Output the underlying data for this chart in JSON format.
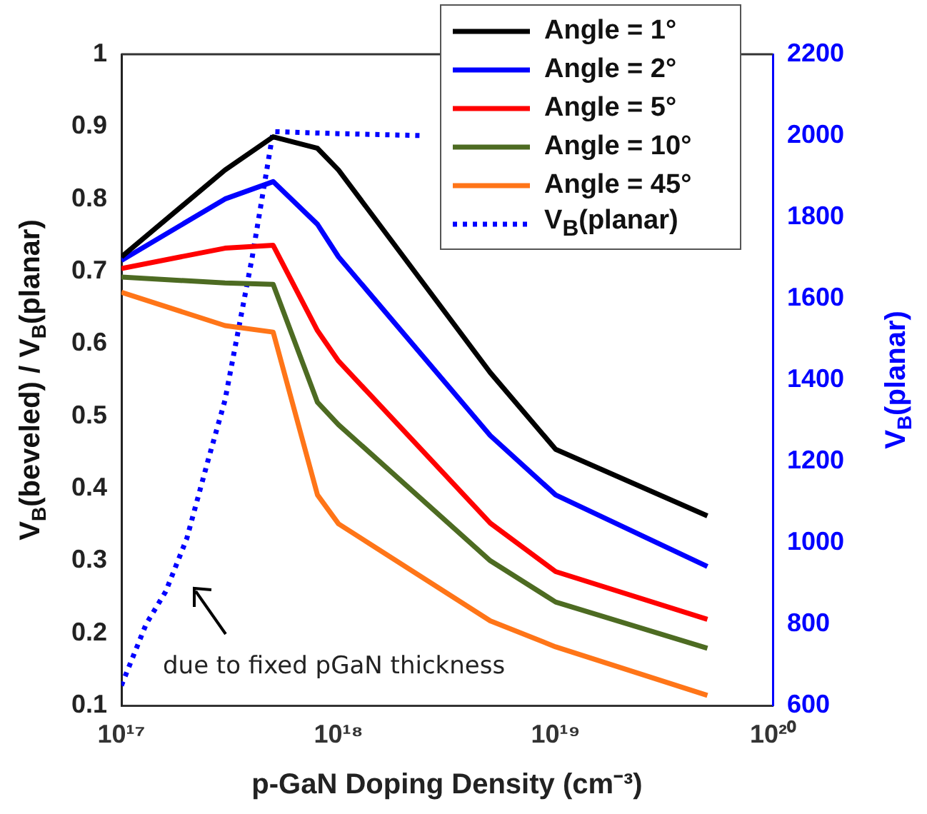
{
  "chart_data": {
    "type": "line",
    "xlabel": "p-GaN Doping Density (cm⁻³)",
    "ylabel": "V$_{B}$(beveled) / V$_{B}$(planar)",
    "y2label": "V$_{B}$(planar)",
    "log": "x",
    "xlim": [
      1e+17,
      1e+20
    ],
    "xticks": [
      {
        "value": 1e+17,
        "label": "10¹⁷"
      },
      {
        "value": 1e+18,
        "label": "10¹⁸"
      },
      {
        "value": 1e+19,
        "label": "10¹⁹"
      },
      {
        "value": 1e+20,
        "label": "10²⁰"
      }
    ],
    "ylim": [
      0.1,
      1
    ],
    "yticks": [
      0.1,
      0.2,
      0.3,
      0.4,
      0.5,
      0.6,
      0.7,
      0.8,
      0.9,
      1
    ],
    "y2lim": [
      600,
      2200
    ],
    "y2ticks": [
      600,
      800,
      1000,
      1200,
      1400,
      1600,
      1800,
      2000,
      2200
    ],
    "grid": false,
    "legend": "top right",
    "line_style": "solid",
    "marker": "none",
    "annotations": [
      "due to fixed pGaN thickness"
    ],
    "series": [
      {
        "name": "Angle = 1°",
        "color": "#000000",
        "x": [
          1e+17,
          3e+17,
          5e+17,
          8e+17,
          1e+18,
          5e+18,
          1e+19,
          5e+19
        ],
        "values": [
          0.72,
          0.84,
          0.886,
          0.87,
          0.84,
          0.56,
          0.454,
          0.362
        ]
      },
      {
        "name": "Angle = 2°",
        "color": "#0000ff",
        "x": [
          1e+17,
          3e+17,
          5e+17,
          8e+17,
          1e+18,
          5e+18,
          1e+19,
          5e+19
        ],
        "values": [
          0.715,
          0.8,
          0.824,
          0.765,
          0.72,
          0.473,
          0.391,
          0.292
        ]
      },
      {
        "name": "Angle = 5°",
        "color": "#ff0000",
        "x": [
          1e+17,
          3e+17,
          5e+17,
          8e+17,
          1e+18,
          5e+18,
          1e+19,
          5e+19
        ],
        "values": [
          0.704,
          0.732,
          0.736,
          0.618,
          0.576,
          0.352,
          0.285,
          0.219
        ]
      },
      {
        "name": "Angle = 10°",
        "color": "#4d6b22",
        "x": [
          1e+17,
          3e+17,
          5e+17,
          8e+17,
          1e+18,
          5e+18,
          1e+19,
          5e+19
        ],
        "values": [
          0.692,
          0.684,
          0.682,
          0.519,
          0.488,
          0.3,
          0.243,
          0.179
        ]
      },
      {
        "name": "Angle = 45°",
        "color": "#ff7518",
        "x": [
          1e+17,
          3e+17,
          5e+17,
          8e+17,
          1e+18,
          5e+18,
          1e+19,
          5e+19
        ],
        "values": [
          0.671,
          0.625,
          0.616,
          0.391,
          0.351,
          0.217,
          0.181,
          0.114
        ]
      },
      {
        "name": "V$_{B}$(planar)",
        "color": "#0000ff",
        "axis": "y2",
        "line_style": "dotted",
        "x": [
          1e+17,
          1.3e+17,
          1.6e+17,
          2e+17,
          2.5e+17,
          3e+17,
          4e+17,
          5e+17,
          1e+18,
          2.5e+18
        ],
        "values": [
          649,
          800,
          880,
          1010,
          1200,
          1350,
          1700,
          2010,
          2005,
          2000
        ]
      }
    ]
  }
}
